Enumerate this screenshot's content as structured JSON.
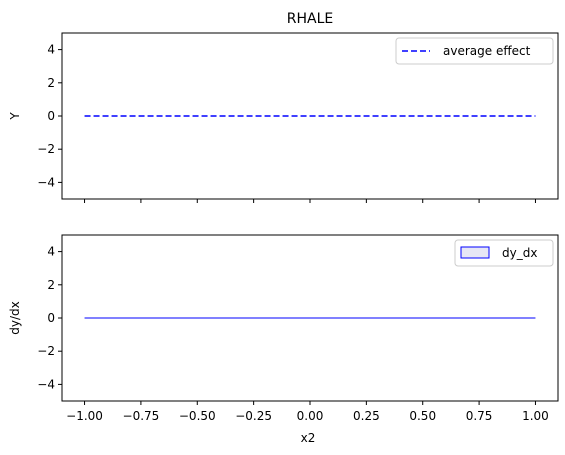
{
  "chart_data": [
    {
      "type": "line",
      "title": "RHALE",
      "xlabel": "",
      "ylabel": "Y",
      "xlim": [
        -1.1,
        1.1
      ],
      "ylim": [
        -5,
        5
      ],
      "x_ticks": [
        -1.0,
        -0.75,
        -0.5,
        -0.25,
        0.0,
        0.25,
        0.5,
        0.75,
        1.0
      ],
      "x_tick_labels_shown": false,
      "y_ticks": [
        4,
        2,
        0,
        -2,
        -4
      ],
      "y_tick_labels": [
        "4",
        "2",
        "0",
        "−2",
        "−4"
      ],
      "grid": false,
      "legend": "top-right",
      "series": [
        {
          "name": "average effect",
          "style": "dashed",
          "color": "#0000ff",
          "x": [
            -1.0,
            1.0
          ],
          "y": [
            0,
            0
          ]
        }
      ]
    },
    {
      "type": "area",
      "title": "",
      "xlabel": "x2",
      "ylabel": "dy/dx",
      "xlim": [
        -1.1,
        1.1
      ],
      "ylim": [
        -5,
        5
      ],
      "x_ticks": [
        -1.0,
        -0.75,
        -0.5,
        -0.25,
        0.0,
        0.25,
        0.5,
        0.75,
        1.0
      ],
      "x_tick_labels": [
        "−1.00",
        "−0.75",
        "−0.50",
        "−0.25",
        "0.00",
        "0.25",
        "0.50",
        "0.75",
        "1.00"
      ],
      "y_ticks": [
        4,
        2,
        0,
        -2,
        -4
      ],
      "y_tick_labels": [
        "4",
        "2",
        "0",
        "−2",
        "−4"
      ],
      "grid": false,
      "legend": "top-right",
      "series": [
        {
          "name": "dy_dx",
          "style": "filled-band",
          "edge_color": "#0000ff",
          "fill_color": "#e6e6f5",
          "x": [
            -1.0,
            1.0
          ],
          "y_low": [
            0,
            0
          ],
          "y_high": [
            0,
            0
          ]
        }
      ]
    }
  ]
}
